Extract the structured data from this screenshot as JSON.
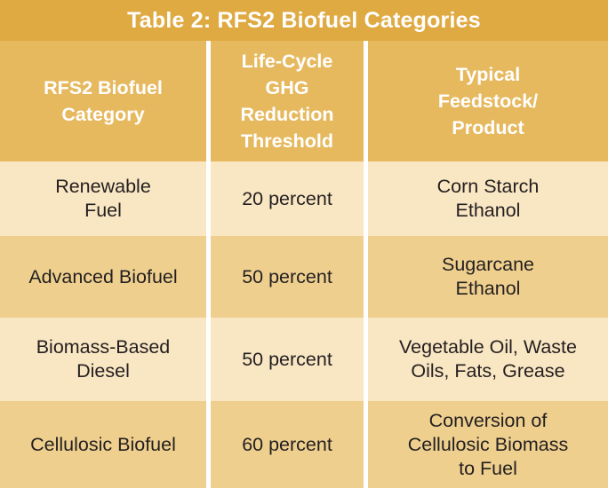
{
  "title": "Table 2: RFS2 Biofuel Categories",
  "headers": [
    "RFS2 Biofuel\nCategory",
    "Life-Cycle\nGHG\nReduction\nThreshold",
    "Typical\nFeedstock/\nProduct"
  ],
  "rows": [
    [
      "Renewable\nFuel",
      "20 percent",
      "Corn Starch\nEthanol"
    ],
    [
      "Advanced Biofuel",
      "50 percent",
      "Sugarcane\nEthanol"
    ],
    [
      "Biomass-Based\nDiesel",
      "50 percent",
      "Vegetable Oil, Waste\nOils, Fats, Grease"
    ],
    [
      "Cellulosic Biofuel",
      "60 percent",
      "Conversion of\nCellulosic Biomass\nto Fuel"
    ]
  ],
  "colors": {
    "title_bg": "#dfaa42",
    "header_bg": "#e6b95f",
    "row_light": "#f9e6c3",
    "row_dark": "#eecf8e",
    "divider": "#ffffff"
  }
}
